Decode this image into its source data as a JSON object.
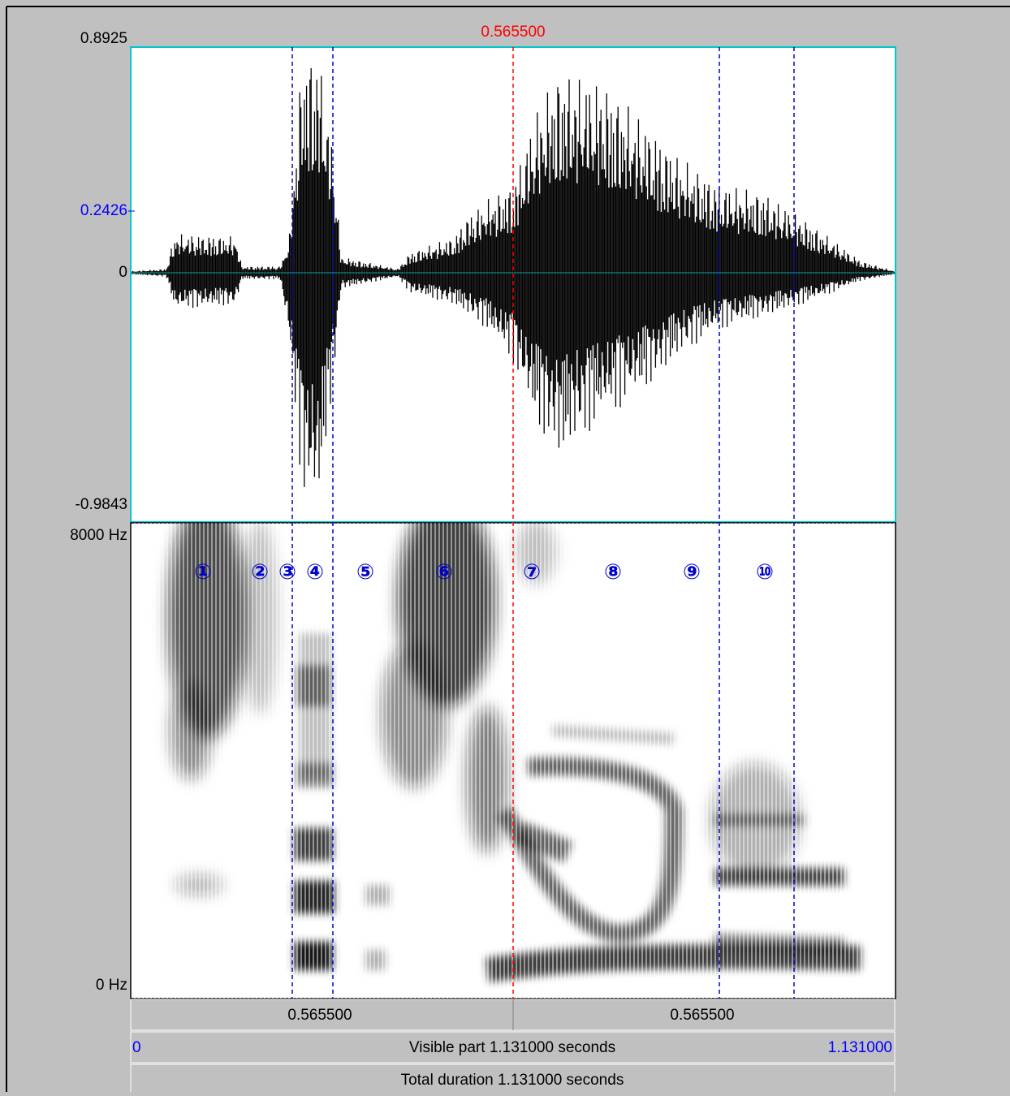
{
  "cursor_time": "0.565500",
  "waveform": {
    "y_labels": [
      "0.8925",
      "0.2426",
      "0",
      "-0.9843"
    ]
  },
  "spectrogram": {
    "y_labels": [
      "8000 Hz",
      "0 Hz"
    ],
    "segment_labels": [
      "①",
      "②",
      "③",
      "④",
      "⑤",
      "⑥",
      "⑦",
      "⑧",
      "⑨",
      "⑩"
    ]
  },
  "time_bar": {
    "left": "0.565500",
    "right": "0.565500"
  },
  "visible_bar": {
    "start": "0",
    "text": "Visible part 1.131000 seconds",
    "end": "1.131000"
  },
  "total_bar": {
    "text": "Total duration 1.131000 seconds"
  }
}
